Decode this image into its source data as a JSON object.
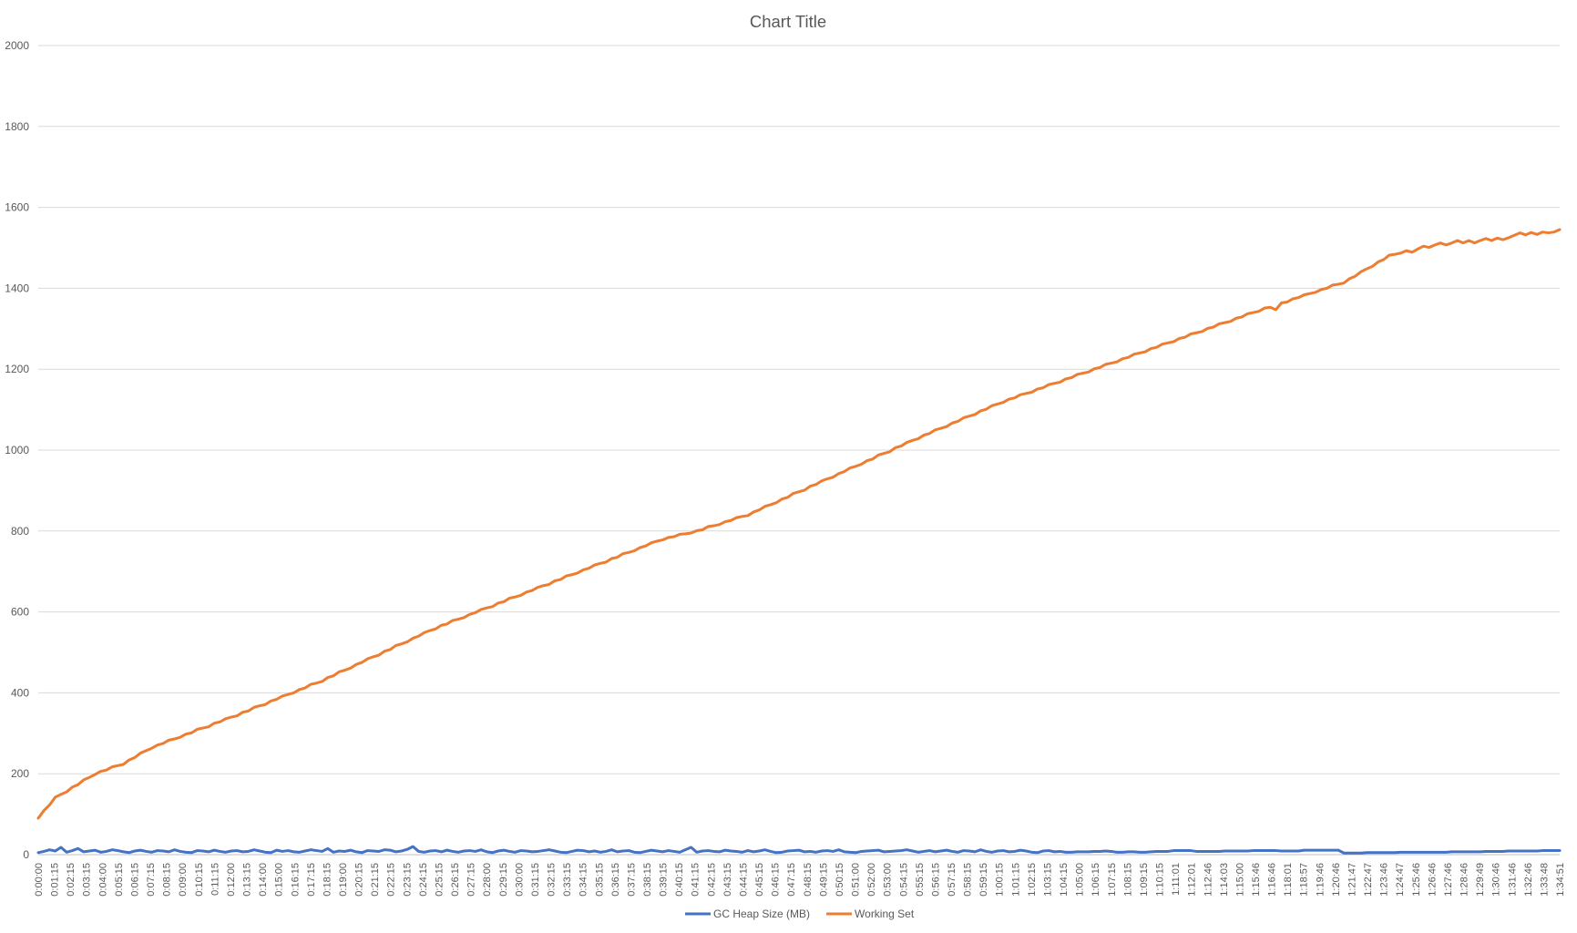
{
  "chart_data": {
    "type": "line",
    "title": "Chart Title",
    "xlabel": "",
    "ylabel": "",
    "ylim": [
      0,
      2000
    ],
    "yticks": [
      0,
      200,
      400,
      600,
      800,
      1000,
      1200,
      1400,
      1600,
      1800,
      2000
    ],
    "grid": true,
    "legend_position": "bottom",
    "x_tick_labels": [
      "0:00:00",
      "0:01:15",
      "0:02:15",
      "0:03:15",
      "0:04:00",
      "0:05:15",
      "0:06:15",
      "0:07:15",
      "0:08:15",
      "0:09:00",
      "0:10:15",
      "0:11:15",
      "0:12:00",
      "0:13:15",
      "0:14:00",
      "0:15:00",
      "0:16:15",
      "0:17:15",
      "0:18:15",
      "0:19:00",
      "0:20:15",
      "0:21:15",
      "0:22:15",
      "0:23:15",
      "0:24:15",
      "0:25:15",
      "0:26:15",
      "0:27:15",
      "0:28:00",
      "0:29:15",
      "0:30:00",
      "0:31:15",
      "0:32:15",
      "0:33:15",
      "0:34:15",
      "0:35:15",
      "0:36:15",
      "0:37:15",
      "0:38:15",
      "0:39:15",
      "0:40:15",
      "0:41:15",
      "0:42:15",
      "0:43:15",
      "0:44:15",
      "0:45:15",
      "0:46:15",
      "0:47:15",
      "0:48:15",
      "0:49:15",
      "0:50:15",
      "0:51:00",
      "0:52:00",
      "0:53:00",
      "0:54:15",
      "0:55:15",
      "0:56:15",
      "0:57:15",
      "0:58:15",
      "0:59:15",
      "1:00:15",
      "1:01:15",
      "1:02:15",
      "1:03:15",
      "1:04:15",
      "1:05:00",
      "1:06:15",
      "1:07:15",
      "1:08:15",
      "1:09:15",
      "1:10:15",
      "1:11:01",
      "1:12:01",
      "1:12:46",
      "1:14:03",
      "1:15:00",
      "1:15:46",
      "1:16:46",
      "1:18:01",
      "1:18:57",
      "1:19:46",
      "1:20:46",
      "1:21:47",
      "1:22:47",
      "1:23:46",
      "1:24:47",
      "1:25:46",
      "1:26:46",
      "1:27:46",
      "1:28:46",
      "1:29:49",
      "1:30:46",
      "1:31:46",
      "1:32:46",
      "1:33:48",
      "1:34:51"
    ],
    "series": [
      {
        "name": "GC Heap Size (MB)",
        "color": "#4472c4",
        "values": [
          5,
          8,
          12,
          9,
          18,
          6,
          10,
          15,
          7,
          9,
          11,
          6,
          8,
          12,
          10,
          7,
          5,
          9,
          11,
          8,
          6,
          10,
          9,
          7,
          12,
          8,
          6,
          5,
          10,
          9,
          7,
          11,
          8,
          6,
          9,
          10,
          7,
          8,
          12,
          9,
          6,
          5,
          11,
          8,
          10,
          7,
          6,
          9,
          12,
          10,
          8,
          15,
          6,
          9,
          8,
          11,
          7,
          5,
          10,
          9,
          8,
          12,
          11,
          7,
          9,
          13,
          20,
          8,
          6,
          9,
          10,
          7,
          11,
          8,
          6,
          9,
          10,
          8,
          12,
          7,
          5,
          9,
          11,
          8,
          6,
          10,
          9,
          7,
          8,
          10,
          12,
          9,
          6,
          5,
          8,
          11,
          10,
          7,
          9,
          6,
          8,
          12,
          7,
          9,
          10,
          6,
          5,
          8,
          11,
          9,
          7,
          10,
          8,
          6,
          12,
          18,
          6,
          9,
          10,
          8,
          7,
          11,
          9,
          8,
          6,
          10,
          7,
          9,
          12,
          8,
          5,
          6,
          9,
          10,
          11,
          7,
          8,
          6,
          9,
          10,
          8,
          12,
          7,
          6,
          5,
          8,
          9,
          10,
          11,
          7,
          8,
          9,
          10,
          12,
          9,
          6,
          8,
          10,
          7,
          9,
          11,
          8,
          6,
          10,
          9,
          7,
          12,
          8,
          6,
          9,
          10,
          7,
          8,
          11,
          9,
          6,
          5,
          9,
          10,
          7,
          8,
          6,
          6,
          7,
          7,
          7,
          8,
          8,
          9,
          8,
          6,
          6,
          7,
          7,
          6,
          6,
          7,
          8,
          8,
          8,
          10,
          10,
          10,
          10,
          8,
          8,
          8,
          8,
          8,
          9,
          9,
          9,
          9,
          9,
          10,
          10,
          10,
          10,
          10,
          9,
          9,
          9,
          9,
          11,
          11,
          11,
          11,
          11,
          11,
          11,
          4,
          4,
          4,
          4,
          5,
          5,
          5,
          5,
          5,
          5,
          6,
          6,
          6,
          6,
          6,
          6,
          6,
          6,
          6,
          7,
          7,
          7,
          7,
          7,
          7,
          8,
          8,
          8,
          8,
          9,
          9,
          9,
          9,
          9,
          9,
          10,
          10,
          10,
          10
        ]
      },
      {
        "name": "Working Set",
        "color": "#ed7d31",
        "values": []
      }
    ]
  }
}
